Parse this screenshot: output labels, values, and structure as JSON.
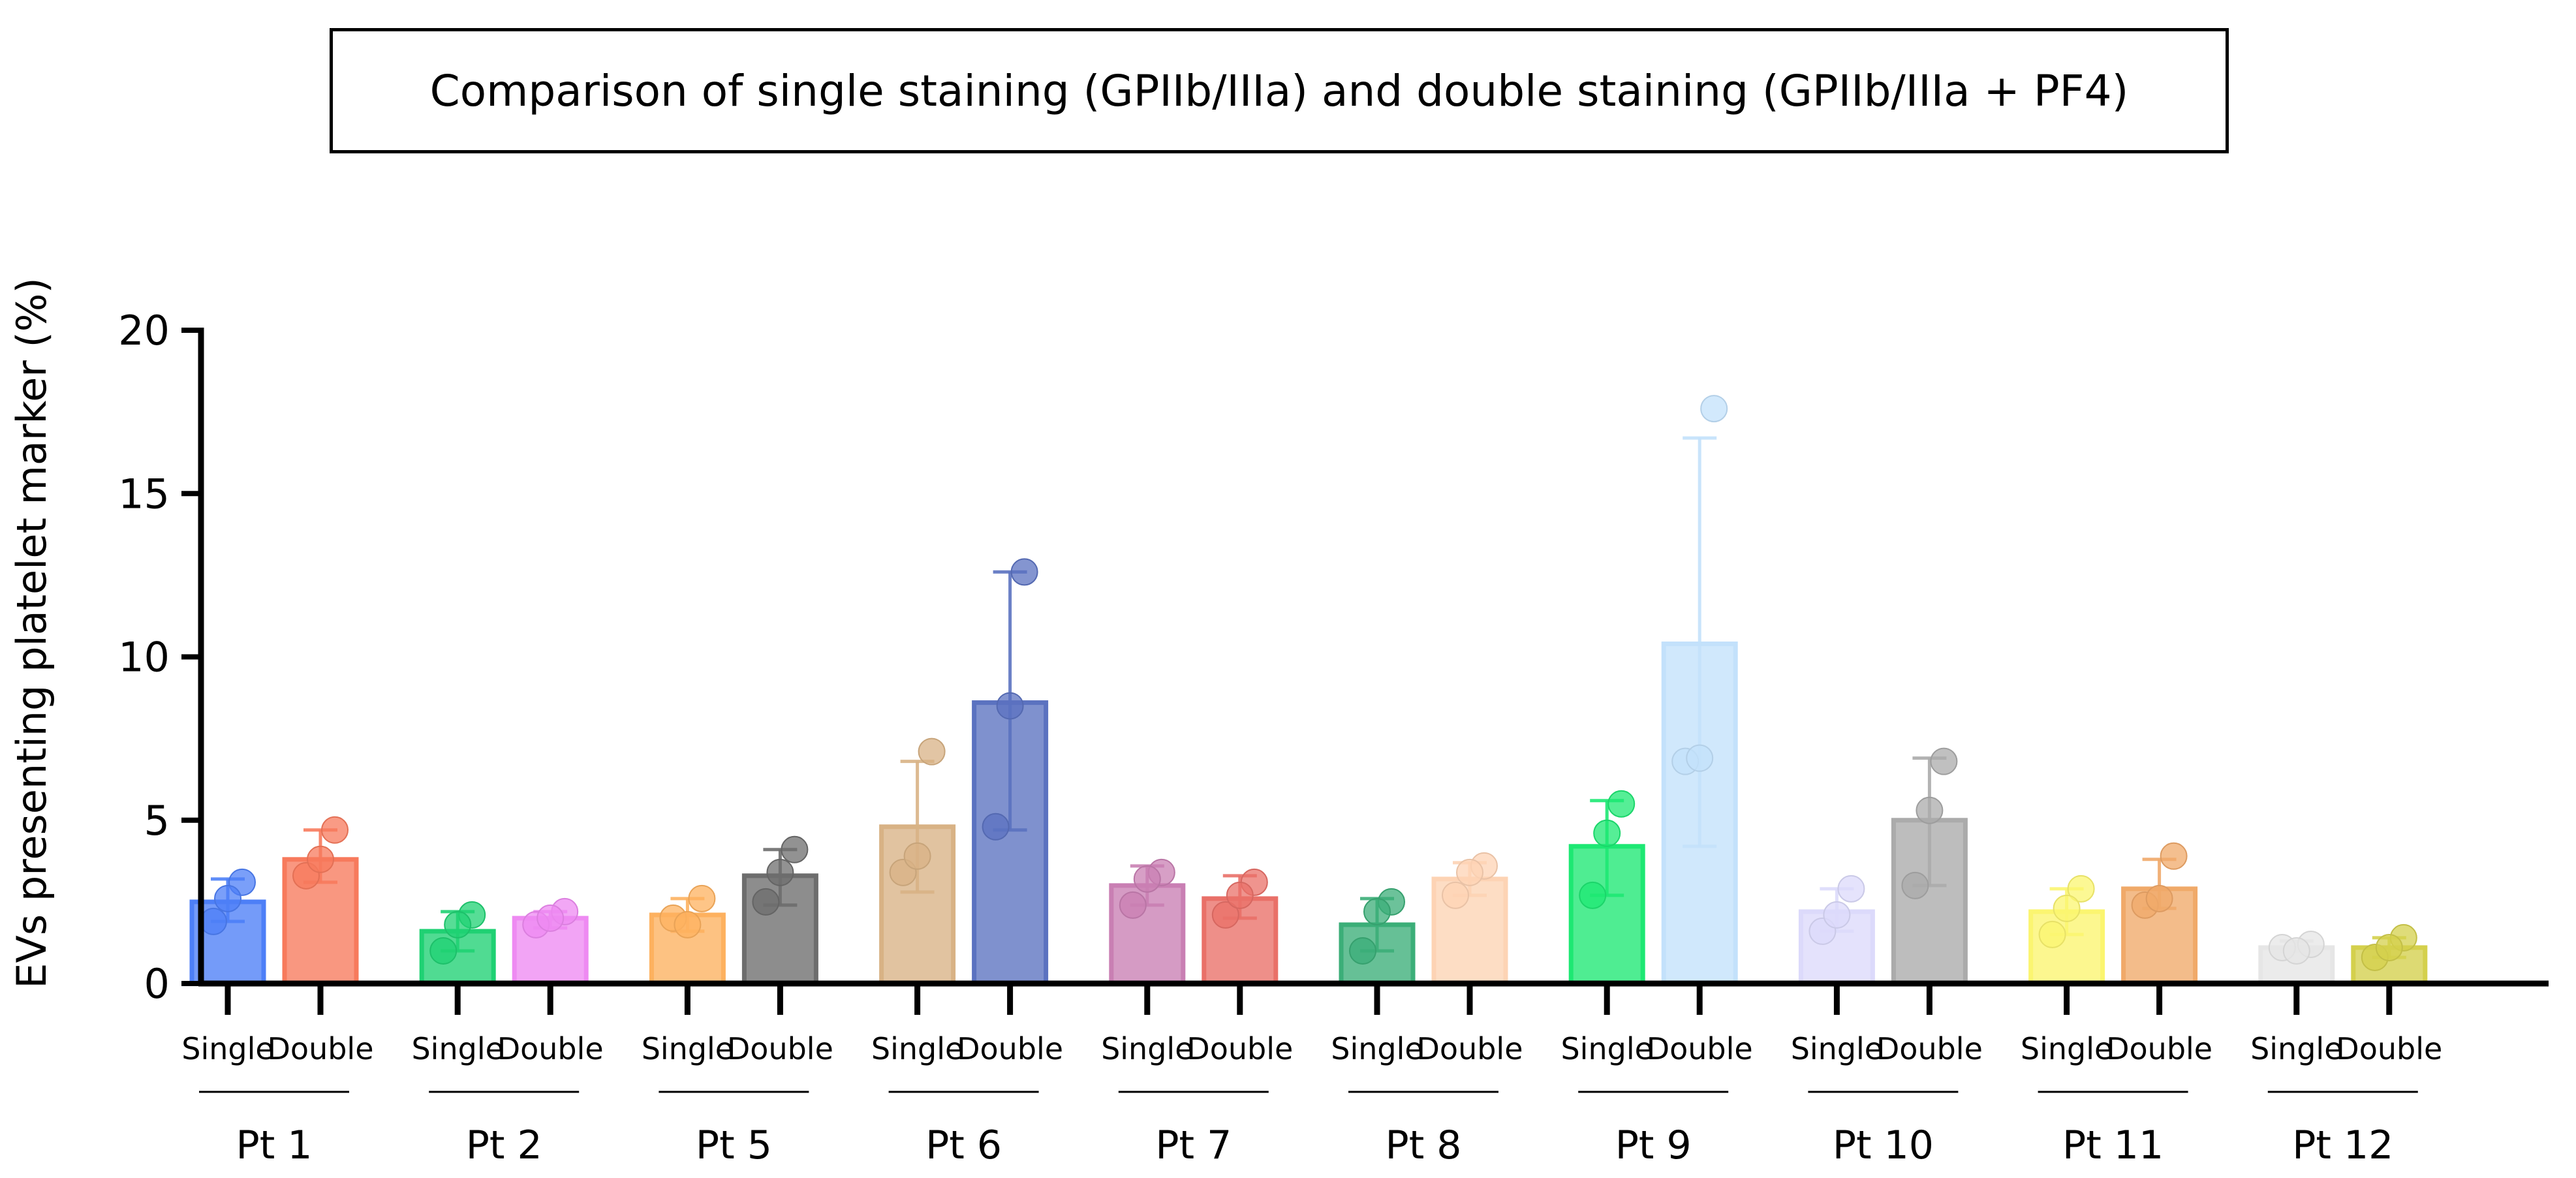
{
  "chart_data": {
    "type": "bar",
    "title": "Comparison of single staining (GPIIb/IIIa) and double staining (GPIIb/IIIa + PF4)",
    "ylabel": "EVs presenting platelet marker (%)",
    "xlabel": "",
    "ylim": [
      0,
      20
    ],
    "yticks": [
      "0",
      "5",
      "10",
      "15",
      "20"
    ],
    "ytick_values": [
      0,
      5,
      10,
      15,
      20
    ],
    "subcategories": [
      "Single",
      "Double"
    ],
    "groups": [
      {
        "label": "Pt 1",
        "bars": [
          {
            "sub": "Single",
            "mean": 2.5,
            "err_lo": 1.9,
            "err_hi": 3.2,
            "color": "#4d7ff7",
            "points": [
              1.9,
              3.1,
              2.6
            ]
          },
          {
            "sub": "Double",
            "mean": 3.8,
            "err_lo": 3.1,
            "err_hi": 4.7,
            "color": "#f77a5c",
            "points": [
              3.3,
              4.7,
              3.8
            ]
          }
        ]
      },
      {
        "label": "Pt 2",
        "bars": [
          {
            "sub": "Single",
            "mean": 1.6,
            "err_lo": 1.0,
            "err_hi": 2.2,
            "color": "#1fd173",
            "points": [
              1.0,
              2.1,
              1.8
            ]
          },
          {
            "sub": "Double",
            "mean": 2.0,
            "err_lo": 1.7,
            "err_hi": 2.2,
            "color": "#ee8af2",
            "points": [
              1.8,
              2.2,
              2.0
            ]
          }
        ]
      },
      {
        "label": "Pt 5",
        "bars": [
          {
            "sub": "Single",
            "mean": 2.1,
            "err_lo": 1.6,
            "err_hi": 2.6,
            "color": "#fdb15f",
            "points": [
              2.0,
              2.6,
              1.8
            ]
          },
          {
            "sub": "Double",
            "mean": 3.3,
            "err_lo": 2.4,
            "err_hi": 4.1,
            "color": "#6d6d6d",
            "points": [
              2.5,
              4.1,
              3.4
            ]
          }
        ]
      },
      {
        "label": "Pt 6",
        "bars": [
          {
            "sub": "Single",
            "mean": 4.8,
            "err_lo": 2.8,
            "err_hi": 6.8,
            "color": "#d8b285",
            "points": [
              3.4,
              7.1,
              3.9
            ]
          },
          {
            "sub": "Double",
            "mean": 8.6,
            "err_lo": 4.7,
            "err_hi": 12.6,
            "color": "#5b72c0",
            "points": [
              4.8,
              12.6,
              8.5
            ]
          }
        ]
      },
      {
        "label": "Pt 7",
        "bars": [
          {
            "sub": "Single",
            "mean": 3.0,
            "err_lo": 2.4,
            "err_hi": 3.6,
            "color": "#c97fb3",
            "points": [
              2.4,
              3.4,
              3.2
            ]
          },
          {
            "sub": "Double",
            "mean": 2.6,
            "err_lo": 2.0,
            "err_hi": 3.3,
            "color": "#e97068",
            "points": [
              2.1,
              3.1,
              2.7
            ]
          }
        ]
      },
      {
        "label": "Pt 8",
        "bars": [
          {
            "sub": "Single",
            "mean": 1.8,
            "err_lo": 1.0,
            "err_hi": 2.6,
            "color": "#3bae78",
            "points": [
              1.0,
              2.5,
              2.2
            ]
          },
          {
            "sub": "Double",
            "mean": 3.2,
            "err_lo": 2.7,
            "err_hi": 3.7,
            "color": "#fdd3b4",
            "points": [
              2.7,
              3.6,
              3.4
            ]
          }
        ]
      },
      {
        "label": "Pt 9",
        "bars": [
          {
            "sub": "Single",
            "mean": 4.2,
            "err_lo": 2.7,
            "err_hi": 5.6,
            "color": "#1de873",
            "points": [
              2.7,
              5.5,
              4.6
            ]
          },
          {
            "sub": "Double",
            "mean": 10.4,
            "err_lo": 4.2,
            "err_hi": 16.7,
            "color": "#c3e1fb",
            "points": [
              6.8,
              17.6,
              6.9
            ]
          }
        ]
      },
      {
        "label": "Pt 10",
        "bars": [
          {
            "sub": "Single",
            "mean": 2.2,
            "err_lo": 1.6,
            "err_hi": 2.9,
            "color": "#dcdafb",
            "points": [
              1.6,
              2.9,
              2.1
            ]
          },
          {
            "sub": "Double",
            "mean": 5.0,
            "err_lo": 3.0,
            "err_hi": 6.9,
            "color": "#ababab",
            "points": [
              3.0,
              6.8,
              5.3
            ]
          }
        ]
      },
      {
        "label": "Pt 11",
        "bars": [
          {
            "sub": "Single",
            "mean": 2.2,
            "err_lo": 1.5,
            "err_hi": 2.9,
            "color": "#fbf570",
            "points": [
              1.5,
              2.9,
              2.3
            ]
          },
          {
            "sub": "Double",
            "mean": 2.9,
            "err_lo": 2.3,
            "err_hi": 3.8,
            "color": "#f0a969",
            "points": [
              2.4,
              3.9,
              2.6
            ]
          }
        ]
      },
      {
        "label": "Pt 12",
        "bars": [
          {
            "sub": "Single",
            "mean": 1.1,
            "err_lo": 1.0,
            "err_hi": 1.3,
            "color": "#e6e6e6",
            "points": [
              1.1,
              1.2,
              1.0
            ]
          },
          {
            "sub": "Double",
            "mean": 1.1,
            "err_lo": 0.8,
            "err_hi": 1.4,
            "color": "#d4d04c",
            "points": [
              0.8,
              1.4,
              1.1
            ]
          }
        ]
      }
    ]
  }
}
